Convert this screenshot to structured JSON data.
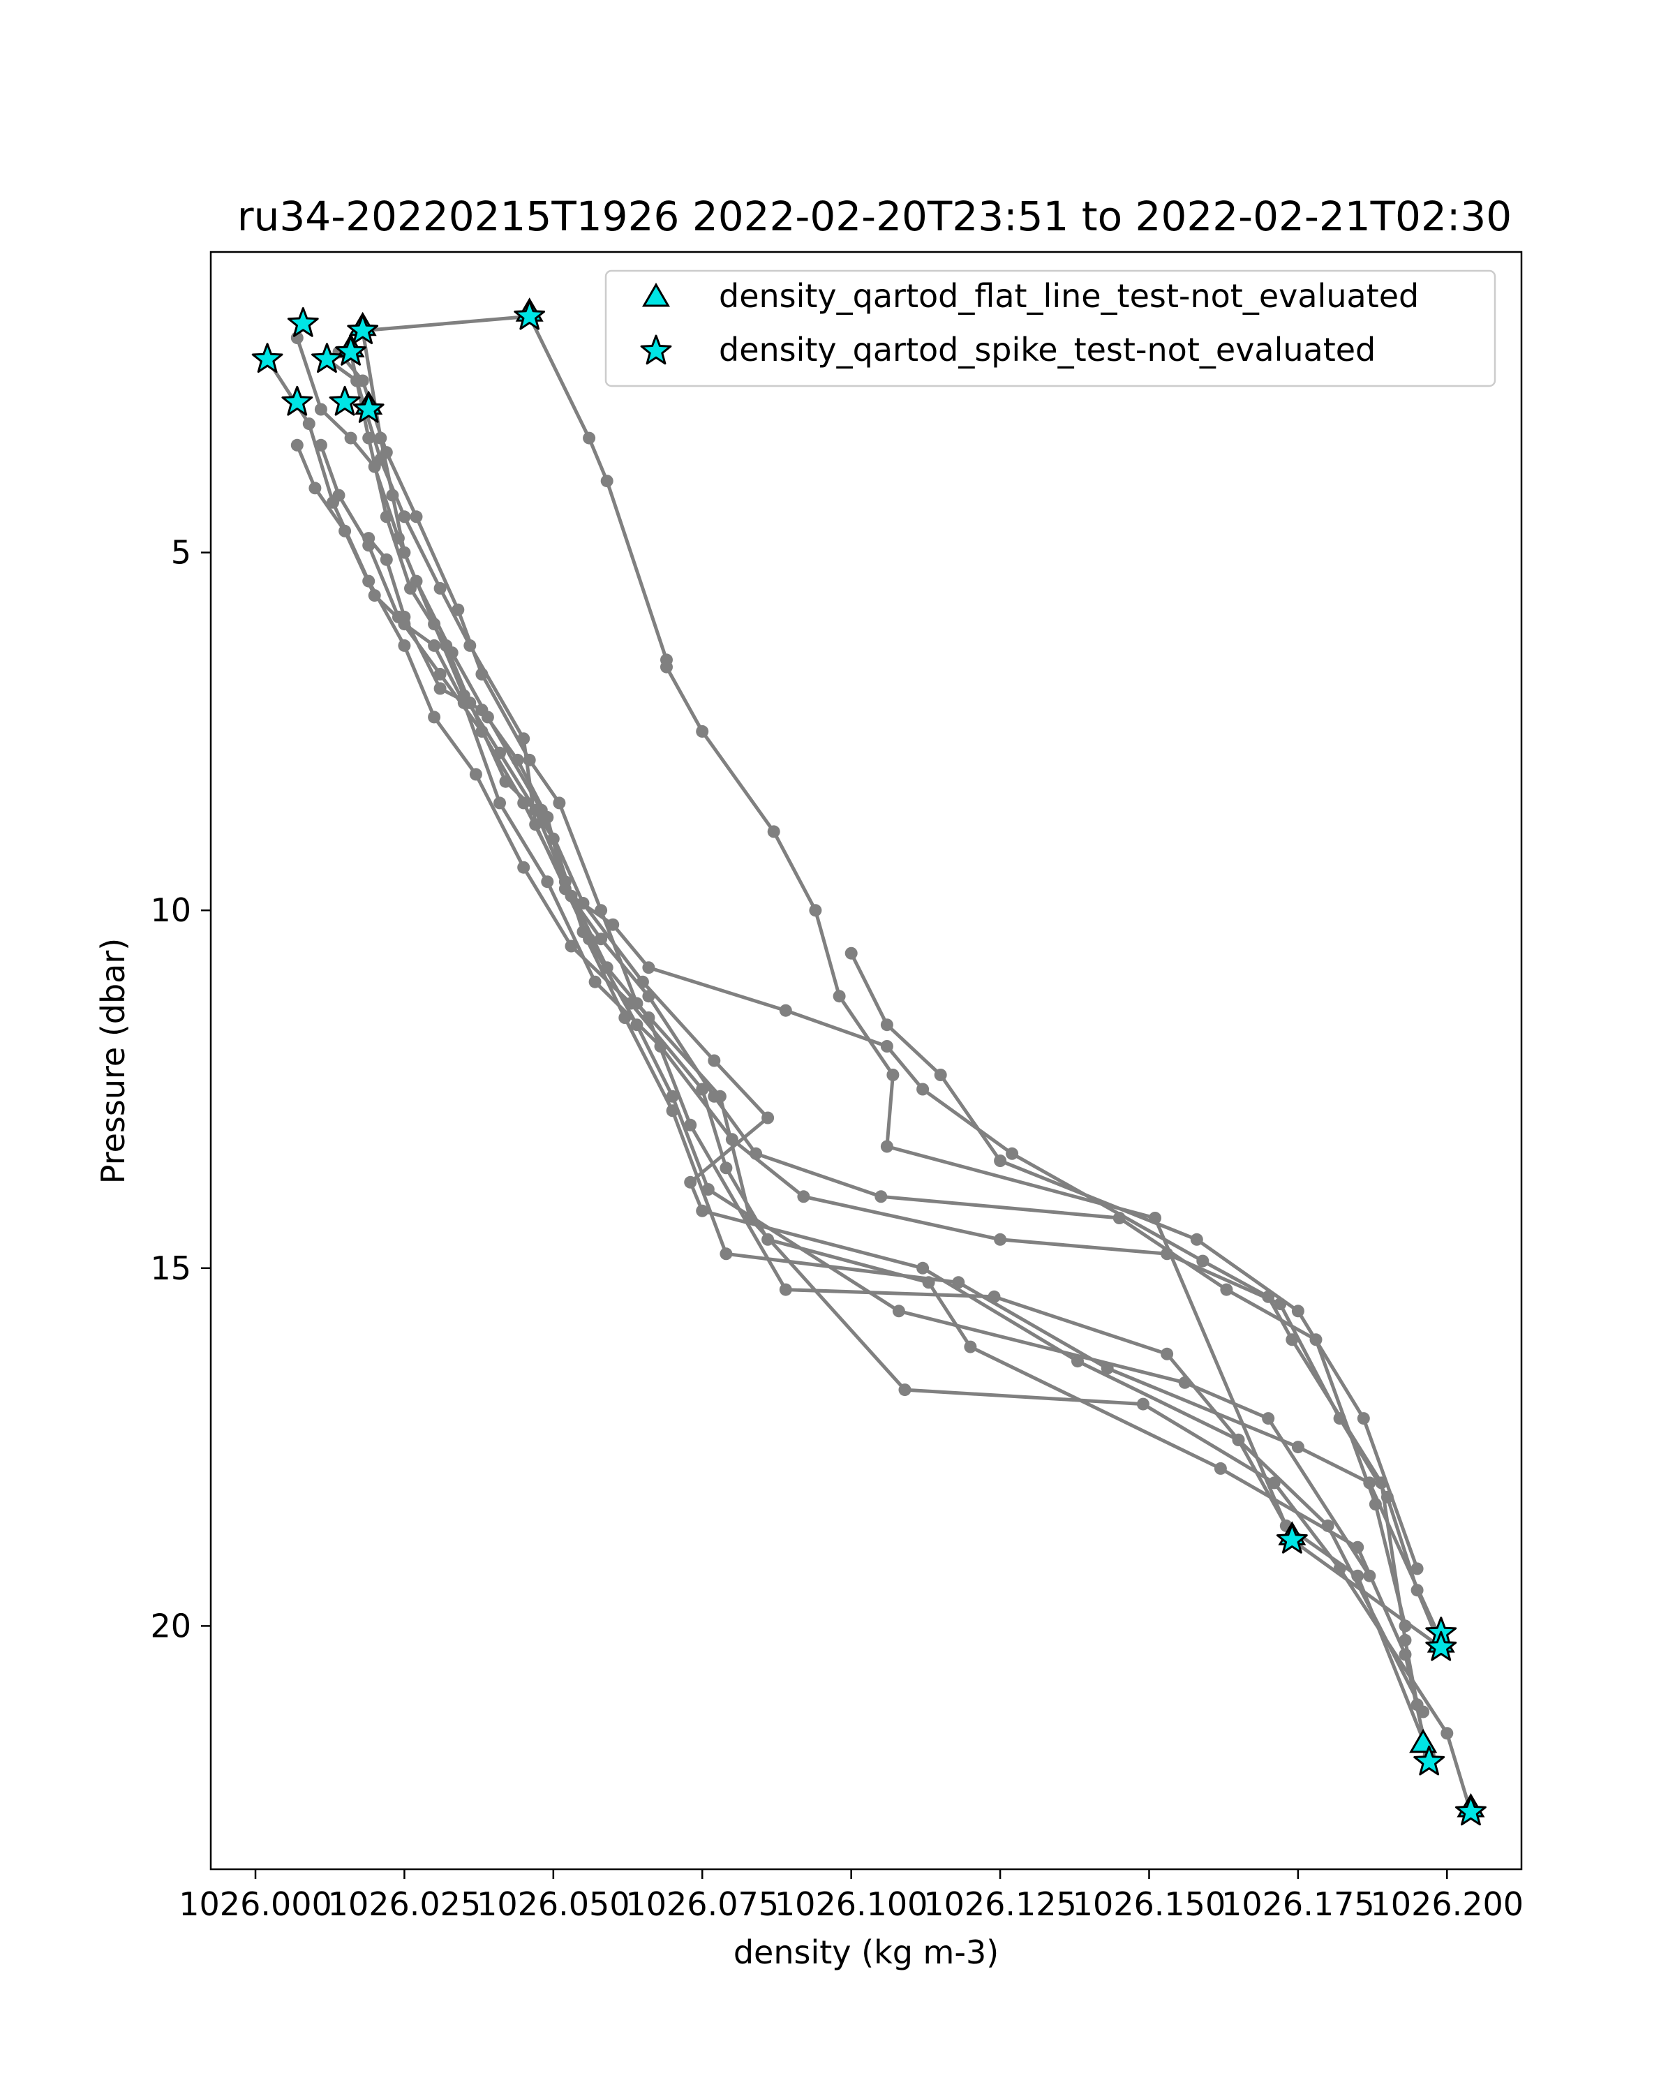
{
  "chart_data": {
    "type": "line",
    "title": "ru34-20220215T1926 2022-02-20T23:51 to 2022-02-21T02:30",
    "xlabel": "density (kg m-3)",
    "ylabel": "Pressure (dbar)",
    "xlim": [
      1025.9925,
      1026.2125
    ],
    "ylim": [
      23.4,
      0.8
    ],
    "y_inverted": true,
    "x_ticks": [
      1026.0,
      1026.025,
      1026.05,
      1026.075,
      1026.1,
      1026.125,
      1026.15,
      1026.175,
      1026.2
    ],
    "x_tick_labels": [
      "1026.000",
      "1026.025",
      "1026.050",
      "1026.075",
      "1026.100",
      "1026.125",
      "1026.150",
      "1026.175",
      "1026.200"
    ],
    "y_ticks": [
      5,
      10,
      15,
      20
    ],
    "y_tick_labels": [
      "5",
      "10",
      "15",
      "20"
    ],
    "grid": false,
    "line_color": "#808080",
    "marker_color": "#00e5e5",
    "legend_position": "top-right",
    "legend": [
      {
        "label": "density_qartod_flat_line_test-not_evaluated",
        "marker": "triangle"
      },
      {
        "label": "density_qartod_spike_test-not_evaluated",
        "marker": "star"
      }
    ],
    "series": [
      {
        "points": [
          [
            1026.046,
            1.7
          ],
          [
            1026.056,
            3.4
          ],
          [
            1026.059,
            4.0
          ],
          [
            1026.069,
            6.5
          ],
          [
            1026.069,
            6.6
          ],
          [
            1026.075,
            7.5
          ],
          [
            1026.087,
            8.9
          ],
          [
            1026.094,
            10.0
          ],
          [
            1026.098,
            11.2
          ],
          [
            1026.107,
            12.3
          ],
          [
            1026.106,
            13.3
          ],
          [
            1026.151,
            14.3
          ],
          [
            1026.174,
            18.8
          ],
          [
            1026.199,
            20.3
          ]
        ]
      },
      {
        "points": [
          [
            1026.018,
            1.9
          ],
          [
            1026.046,
            1.7
          ]
        ]
      },
      {
        "points": [
          [
            1026.018,
            1.9
          ],
          [
            1026.021,
            3.4
          ],
          [
            1026.023,
            4.2
          ],
          [
            1026.025,
            5.0
          ],
          [
            1026.03,
            6.0
          ],
          [
            1026.035,
            7.0
          ],
          [
            1026.041,
            7.8
          ],
          [
            1026.05,
            9.0
          ],
          [
            1026.055,
            10.3
          ],
          [
            1026.062,
            11.5
          ],
          [
            1026.07,
            12.8
          ],
          [
            1026.079,
            14.8
          ],
          [
            1026.118,
            15.2
          ],
          [
            1026.143,
            16.4
          ],
          [
            1026.175,
            17.5
          ],
          [
            1026.187,
            18.0
          ],
          [
            1026.199,
            20.2
          ]
        ]
      },
      {
        "points": [
          [
            1026.016,
            2.2
          ],
          [
            1026.019,
            3.4
          ],
          [
            1026.022,
            4.5
          ],
          [
            1026.026,
            5.5
          ],
          [
            1026.032,
            6.3
          ],
          [
            1026.036,
            7.1
          ],
          [
            1026.042,
            8.2
          ],
          [
            1026.047,
            8.6
          ],
          [
            1026.052,
            9.6
          ],
          [
            1026.059,
            10.8
          ],
          [
            1026.066,
            11.5
          ],
          [
            1026.073,
            13.0
          ],
          [
            1026.089,
            15.3
          ],
          [
            1026.124,
            15.4
          ],
          [
            1026.153,
            16.2
          ],
          [
            1026.165,
            17.4
          ],
          [
            1026.173,
            18.6
          ],
          [
            1026.185,
            19.3
          ],
          [
            1026.197,
            21.8
          ]
        ]
      },
      {
        "points": [
          [
            1026.002,
            2.3
          ],
          [
            1026.009,
            3.2
          ],
          [
            1026.013,
            4.3
          ],
          [
            1026.019,
            5.4
          ],
          [
            1026.025,
            6.3
          ],
          [
            1026.03,
            7.3
          ],
          [
            1026.037,
            8.1
          ],
          [
            1026.045,
            9.4
          ],
          [
            1026.053,
            10.5
          ],
          [
            1026.063,
            11.3
          ],
          [
            1026.075,
            12.5
          ],
          [
            1026.079,
            13.6
          ],
          [
            1026.086,
            14.6
          ],
          [
            1026.113,
            15.2
          ],
          [
            1026.12,
            16.1
          ],
          [
            1026.162,
            17.8
          ],
          [
            1026.185,
            18.9
          ],
          [
            1026.193,
            20.4
          ],
          [
            1026.197,
            21.9
          ]
        ]
      },
      {
        "points": [
          [
            1026.008,
            1.8
          ],
          [
            1026.007,
            2.0
          ],
          [
            1026.011,
            3.0
          ],
          [
            1026.016,
            3.4
          ],
          [
            1026.02,
            3.8
          ],
          [
            1026.024,
            4.8
          ],
          [
            1026.027,
            5.4
          ],
          [
            1026.033,
            6.4
          ],
          [
            1026.039,
            7.3
          ],
          [
            1026.048,
            8.6
          ],
          [
            1026.055,
            9.9
          ],
          [
            1026.065,
            11.0
          ],
          [
            1026.077,
            12.1
          ],
          [
            1026.086,
            12.9
          ],
          [
            1026.073,
            13.8
          ],
          [
            1026.075,
            14.2
          ],
          [
            1026.112,
            15.0
          ],
          [
            1026.138,
            16.3
          ],
          [
            1026.165,
            17.4
          ],
          [
            1026.18,
            18.6
          ],
          [
            1026.196,
            21.2
          ]
        ]
      },
      {
        "points": [
          [
            1026.012,
            2.3
          ],
          [
            1026.017,
            2.6
          ],
          [
            1026.021,
            3.7
          ],
          [
            1026.025,
            4.5
          ],
          [
            1026.031,
            5.5
          ],
          [
            1026.036,
            6.3
          ],
          [
            1026.045,
            7.6
          ],
          [
            1026.047,
            8.8
          ],
          [
            1026.056,
            10.4
          ],
          [
            1026.064,
            11.6
          ],
          [
            1026.07,
            12.6
          ],
          [
            1026.076,
            13.9
          ],
          [
            1026.108,
            15.6
          ],
          [
            1026.156,
            16.6
          ],
          [
            1026.17,
            17.1
          ],
          [
            1026.187,
            19.3
          ]
        ]
      },
      {
        "points": [
          [
            1026.014,
            2.2
          ],
          [
            1026.018,
            2.6
          ],
          [
            1026.022,
            3.6
          ],
          [
            1026.027,
            4.5
          ],
          [
            1026.034,
            5.8
          ],
          [
            1026.038,
            6.7
          ],
          [
            1026.046,
            7.9
          ],
          [
            1026.051,
            8.5
          ],
          [
            1026.058,
            10.0
          ],
          [
            1026.064,
            11.3
          ],
          [
            1026.078,
            12.6
          ],
          [
            1026.083,
            14.3
          ],
          [
            1026.109,
            16.7
          ],
          [
            1026.149,
            16.9
          ],
          [
            1026.171,
            18.0
          ],
          [
            1026.182,
            19.2
          ],
          [
            1026.2,
            21.5
          ],
          [
            1026.204,
            22.6
          ]
        ]
      },
      {
        "points": [
          [
            1026.011,
            3.5
          ],
          [
            1026.014,
            4.2
          ],
          [
            1026.019,
            4.9
          ],
          [
            1026.024,
            5.9
          ],
          [
            1026.031,
            6.7
          ],
          [
            1026.038,
            7.5
          ],
          [
            1026.045,
            8.5
          ],
          [
            1026.053,
            9.8
          ],
          [
            1026.06,
            10.2
          ],
          [
            1026.066,
            10.8
          ],
          [
            1026.089,
            11.4
          ],
          [
            1026.106,
            11.9
          ],
          [
            1026.112,
            12.5
          ],
          [
            1026.127,
            13.4
          ],
          [
            1026.159,
            14.9
          ],
          [
            1026.17,
            15.4
          ],
          [
            1026.174,
            16.0
          ],
          [
            1026.189,
            18.0
          ],
          [
            1026.193,
            20.2
          ],
          [
            1026.195,
            21.1
          ]
        ]
      },
      {
        "points": [
          [
            1026.007,
            3.5
          ],
          [
            1026.01,
            4.1
          ],
          [
            1026.015,
            4.7
          ],
          [
            1026.02,
            5.6
          ],
          [
            1026.025,
            6.0
          ],
          [
            1026.03,
            6.3
          ],
          [
            1026.035,
            7.1
          ],
          [
            1026.041,
            8.5
          ],
          [
            1026.049,
            9.6
          ],
          [
            1026.057,
            11.0
          ],
          [
            1026.068,
            11.9
          ],
          [
            1026.08,
            13.2
          ],
          [
            1026.092,
            14.0
          ],
          [
            1026.125,
            14.6
          ],
          [
            1026.153,
            14.8
          ],
          [
            1026.172,
            15.5
          ],
          [
            1026.182,
            17.1
          ],
          [
            1026.19,
            18.2
          ],
          [
            1026.195,
            19.5
          ],
          [
            1026.199,
            20.3
          ]
        ]
      },
      {
        "points": [
          [
            1026.1,
            10.6
          ],
          [
            1026.106,
            11.6
          ],
          [
            1026.115,
            12.3
          ],
          [
            1026.125,
            13.5
          ],
          [
            1026.158,
            14.6
          ],
          [
            1026.175,
            15.6
          ],
          [
            1026.186,
            17.1
          ],
          [
            1026.195,
            19.2
          ]
        ]
      },
      {
        "points": [
          [
            1026.019,
            4.8
          ],
          [
            1026.022,
            5.1
          ],
          [
            1026.025,
            5.9
          ],
          [
            1026.031,
            6.9
          ],
          [
            1026.038,
            7.2
          ],
          [
            1026.044,
            7.9
          ],
          [
            1026.049,
            8.7
          ],
          [
            1026.052,
            9.7
          ],
          [
            1026.058,
            10.4
          ],
          [
            1026.066,
            11.2
          ],
          [
            1026.077,
            12.6
          ],
          [
            1026.084,
            13.4
          ],
          [
            1026.105,
            14.0
          ],
          [
            1026.145,
            14.3
          ],
          [
            1026.163,
            15.3
          ],
          [
            1026.178,
            16.0
          ],
          [
            1026.188,
            18.3
          ],
          [
            1026.193,
            20.0
          ]
        ]
      }
    ],
    "star_markers": [
      [
        1026.046,
        1.7
      ],
      [
        1026.008,
        1.8
      ],
      [
        1026.018,
        1.9
      ],
      [
        1026.016,
        2.2
      ],
      [
        1026.012,
        2.3
      ],
      [
        1026.002,
        2.3
      ],
      [
        1026.007,
        2.9
      ],
      [
        1026.015,
        2.9
      ],
      [
        1026.019,
        3.0
      ],
      [
        1026.174,
        18.8
      ],
      [
        1026.199,
        20.1
      ],
      [
        1026.199,
        20.3
      ],
      [
        1026.197,
        21.9
      ],
      [
        1026.204,
        22.6
      ]
    ],
    "triangle_markers": [
      [
        1026.046,
        1.7
      ],
      [
        1026.018,
        1.9
      ],
      [
        1026.016,
        2.2
      ],
      [
        1026.019,
        3.0
      ],
      [
        1026.174,
        18.8
      ],
      [
        1026.199,
        20.3
      ],
      [
        1026.196,
        21.7
      ],
      [
        1026.204,
        22.6
      ]
    ]
  }
}
